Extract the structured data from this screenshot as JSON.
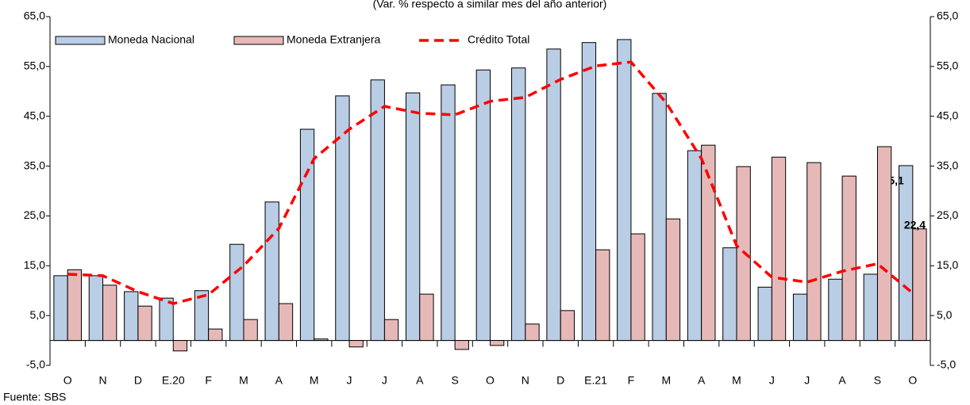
{
  "chart_data": {
    "type": "bar",
    "subtitle": "(Var. % respecto a similar mes del año anterior)",
    "source": "Fuente: SBS",
    "categories": [
      "O",
      "N",
      "D",
      "E.20",
      "F",
      "M",
      "A",
      "M",
      "J",
      "J",
      "A",
      "S",
      "O",
      "N",
      "D",
      "E.21",
      "F",
      "M",
      "A",
      "M",
      "J",
      "J",
      "A",
      "S",
      "O"
    ],
    "series": [
      {
        "name": "Moneda Nacional",
        "type": "bar",
        "color": "#b9cde5",
        "values": [
          13.0,
          13.0,
          9.8,
          8.5,
          10.0,
          19.3,
          27.8,
          42.4,
          49.1,
          52.3,
          49.7,
          51.3,
          54.3,
          54.7,
          58.5,
          59.8,
          60.4,
          49.6,
          38.1,
          18.6,
          10.7,
          9.3,
          12.3,
          13.3,
          35.1
        ],
        "value_labels": [
          null,
          null,
          null,
          null,
          null,
          null,
          null,
          null,
          null,
          null,
          null,
          null,
          null,
          null,
          null,
          null,
          null,
          null,
          null,
          null,
          null,
          null,
          null,
          null,
          "35,1"
        ]
      },
      {
        "name": "Moneda Extranjera",
        "type": "bar",
        "color": "#e6b9b8",
        "values": [
          14.2,
          11.1,
          6.9,
          -2.1,
          2.3,
          4.2,
          7.4,
          0.3,
          -1.3,
          4.2,
          9.3,
          -1.8,
          -1.0,
          3.3,
          6.0,
          18.2,
          21.4,
          24.4,
          39.2,
          34.9,
          36.8,
          35.7,
          33.0,
          38.9,
          22.4
        ],
        "value_labels": [
          null,
          null,
          null,
          null,
          null,
          null,
          null,
          null,
          null,
          null,
          null,
          null,
          null,
          null,
          null,
          null,
          null,
          null,
          null,
          null,
          null,
          null,
          null,
          null,
          "22,4"
        ]
      },
      {
        "name": "Crédito Total",
        "type": "line",
        "color": "#ff0000",
        "values": [
          13.3,
          13.0,
          9.8,
          7.4,
          9.2,
          15.0,
          22.5,
          36.5,
          42.4,
          47.0,
          45.6,
          45.3,
          48.0,
          48.8,
          52.4,
          55.1,
          55.9,
          47.7,
          36.5,
          19.0,
          12.7,
          11.7,
          13.9,
          15.4,
          9.5
        ]
      }
    ],
    "ylim": [
      -5,
      65
    ],
    "yticks": [
      {
        "value": -5,
        "label": "-5,0"
      },
      {
        "value": 5,
        "label": "5,0"
      },
      {
        "value": 15,
        "label": "15,0"
      },
      {
        "value": 25,
        "label": "25,0"
      },
      {
        "value": 35,
        "label": "35,0"
      },
      {
        "value": 45,
        "label": "45,0"
      },
      {
        "value": 55,
        "label": "55,0"
      },
      {
        "value": 65,
        "label": "65,0"
      }
    ],
    "y2lim": [
      -5,
      65
    ],
    "y2ticks": [
      {
        "value": -5,
        "label": "-5,0"
      },
      {
        "value": 5,
        "label": "5,0"
      },
      {
        "value": 15,
        "label": "15,0"
      },
      {
        "value": 25,
        "label": "25,0"
      },
      {
        "value": 35,
        "label": "35,0"
      },
      {
        "value": 45,
        "label": "45,0"
      },
      {
        "value": 55,
        "label": "55,0"
      },
      {
        "value": 65,
        "label": "65,0"
      }
    ],
    "legend": "top-left"
  }
}
